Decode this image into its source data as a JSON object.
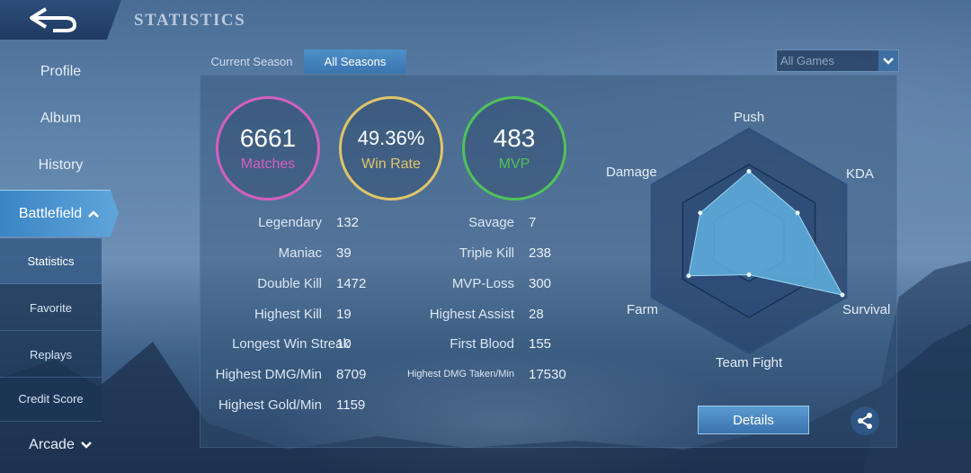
{
  "header": {
    "title": "STATISTICS",
    "back_icon": "back-arrow-icon"
  },
  "sidebar": {
    "items": [
      {
        "label": "Profile"
      },
      {
        "label": "Album"
      },
      {
        "label": "History"
      },
      {
        "label": "Battlefield"
      },
      {
        "label": "Arcade"
      }
    ],
    "sub_items": [
      {
        "label": "Statistics"
      },
      {
        "label": "Favorite"
      },
      {
        "label": "Replays"
      },
      {
        "label": "Credit Score"
      }
    ]
  },
  "tabs": [
    {
      "label": "Current Season",
      "active": false
    },
    {
      "label": "All Seasons",
      "active": true
    }
  ],
  "filter": {
    "selected": "All Games"
  },
  "summary": {
    "matches": {
      "value": "6661",
      "label": "Matches",
      "color": "#d45fc0"
    },
    "win_rate": {
      "value": "49.36%",
      "label": "Win Rate",
      "color": "#e1c56a"
    },
    "mvp": {
      "value": "483",
      "label": "MVP",
      "color": "#4fc25a"
    }
  },
  "stats_left": [
    {
      "label": "Legendary",
      "value": "132"
    },
    {
      "label": "Maniac",
      "value": "39"
    },
    {
      "label": "Double Kill",
      "value": "1472"
    },
    {
      "label": "Highest Kill",
      "value": "19"
    },
    {
      "label": "Longest Win Streak",
      "value": "10"
    },
    {
      "label": "Highest DMG/Min",
      "value": "8709"
    },
    {
      "label": "Highest Gold/Min",
      "value": "1159"
    }
  ],
  "stats_right": [
    {
      "label": "Savage",
      "value": "7"
    },
    {
      "label": "Triple Kill",
      "value": "238"
    },
    {
      "label": "MVP-Loss",
      "value": "300"
    },
    {
      "label": "Highest Assist",
      "value": "28"
    },
    {
      "label": "First Blood",
      "value": "155"
    },
    {
      "label": "Highest DMG Taken/Min",
      "value": "17530"
    }
  ],
  "radar": {
    "axes": [
      "Push",
      "KDA",
      "Survival",
      "Team Fight",
      "Farm",
      "Damage"
    ],
    "levels": [
      0.62,
      0.5,
      0.96,
      0.3,
      0.62,
      0.5
    ],
    "fill_color": "#5fb0df",
    "frame_color": "#1f3a63"
  },
  "buttons": {
    "details": "Details",
    "share_icon": "share-icon"
  }
}
